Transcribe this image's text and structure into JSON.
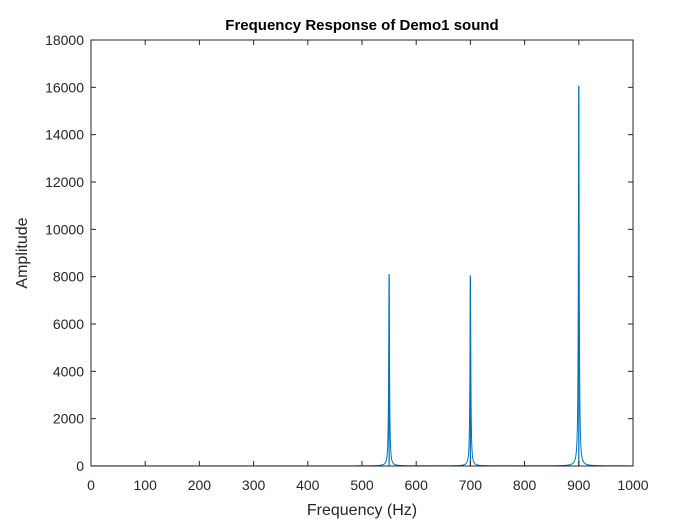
{
  "chart_data": {
    "type": "line",
    "title": "Frequency Response of Demo1 sound",
    "xlabel": "Frequency (Hz)",
    "ylabel": "Amplitude",
    "xlim": [
      0,
      1000
    ],
    "ylim": [
      0,
      18000
    ],
    "xticks": [
      0,
      100,
      200,
      300,
      400,
      500,
      600,
      700,
      800,
      900,
      1000
    ],
    "yticks": [
      0,
      2000,
      4000,
      6000,
      8000,
      10000,
      12000,
      14000,
      16000,
      18000
    ],
    "xtick_labels": [
      "0",
      "100",
      "200",
      "300",
      "400",
      "500",
      "600",
      "700",
      "800",
      "900",
      "1000"
    ],
    "ytick_labels": [
      "0",
      "2000",
      "4000",
      "6000",
      "8000",
      "10000",
      "12000",
      "14000",
      "16000",
      "18000"
    ],
    "grid": false,
    "line_color": "#0072BD",
    "axis_color": "#262626",
    "peaks": [
      {
        "frequency": 550,
        "amplitude": 8100
      },
      {
        "frequency": 700,
        "amplitude": 8050
      },
      {
        "frequency": 900,
        "amplitude": 16050
      }
    ]
  }
}
